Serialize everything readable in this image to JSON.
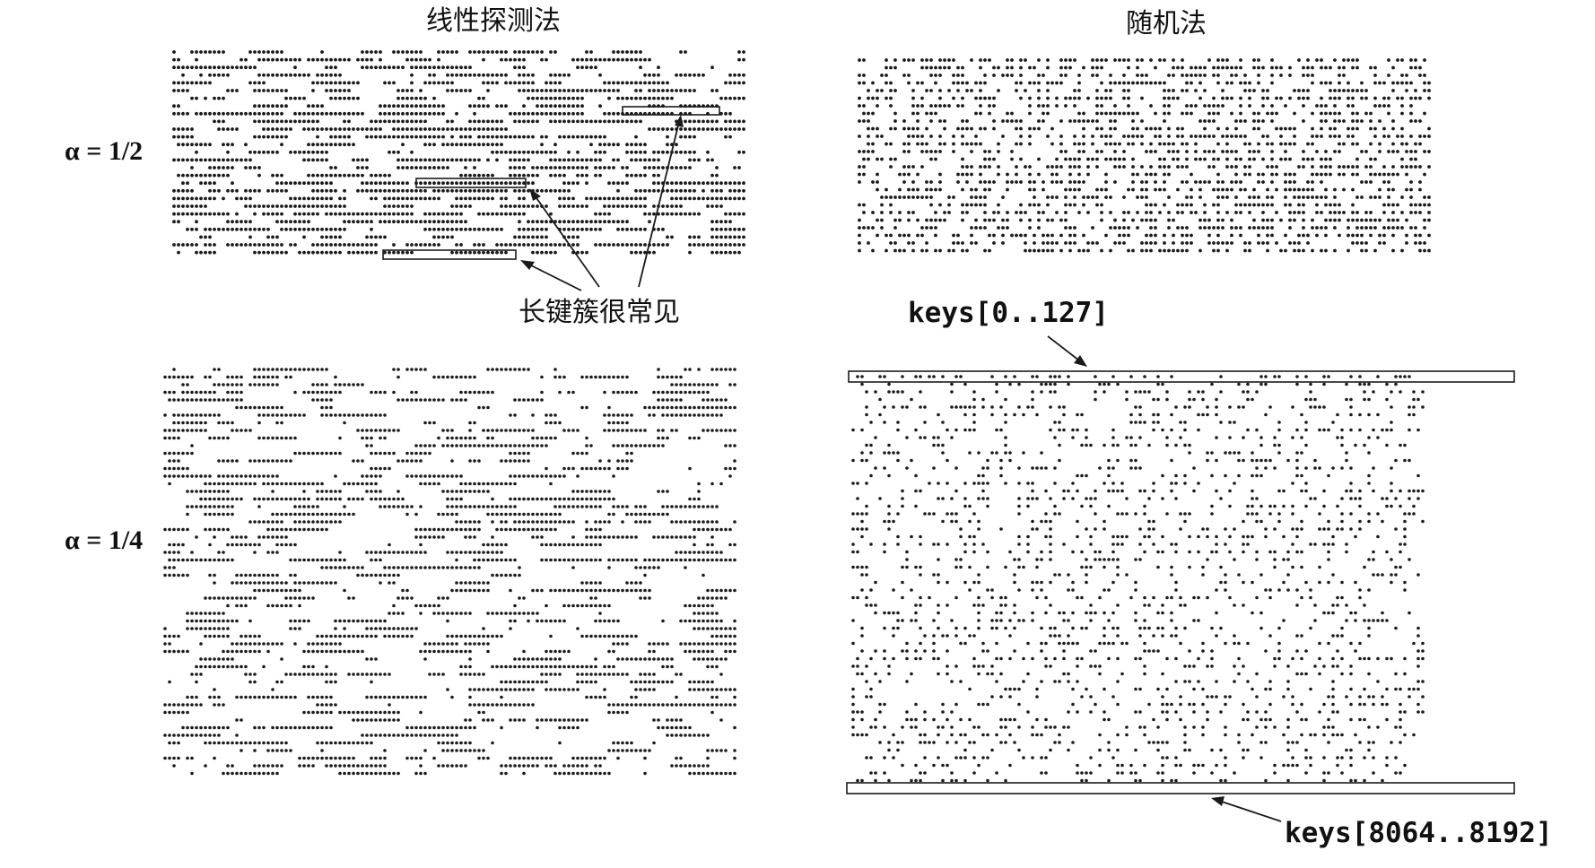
{
  "figure": {
    "columns": [
      {
        "id": "linear-probing",
        "title": "线性探测法"
      },
      {
        "id": "random",
        "title": "随机法"
      }
    ],
    "rows": [
      {
        "id": "half",
        "alpha_label": "α = 1/2",
        "load_factor": 0.5
      },
      {
        "id": "quarter",
        "alpha_label": "α = 1/4",
        "load_factor": 0.25
      }
    ],
    "callouts": {
      "clusters": "长键簇很常见",
      "first_keys": "keys[0..127]",
      "last_keys": "keys[8064..8192]"
    }
  }
}
